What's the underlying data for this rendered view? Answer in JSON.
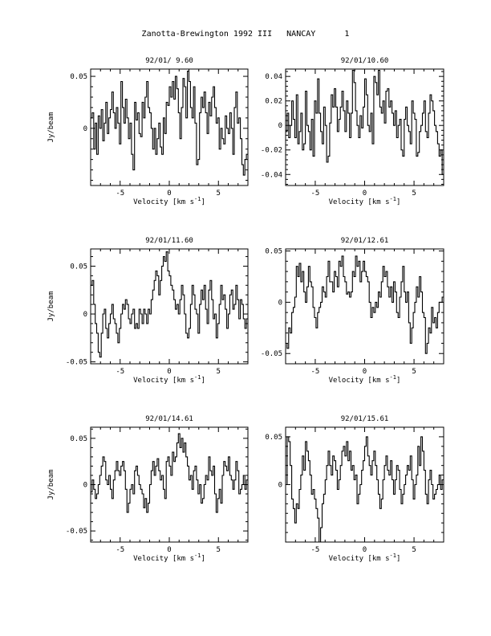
{
  "page": {
    "title": "Zanotta-Brewington 1992 III   NANCAY      1"
  },
  "chart_data": [
    {
      "type": "line",
      "title": "92/01/ 9.60",
      "xlabel": "Velocity [km s",
      "xlabel_sup": "-1",
      "xlabel_close": "]",
      "ylabel": "Jy/beam",
      "xlim": [
        -8,
        8
      ],
      "ylim": [
        -0.055,
        0.057
      ],
      "xticks": [
        -5,
        0,
        5
      ],
      "yticks": [
        0,
        0.05
      ],
      "ytick_labels": [
        "0",
        "0.05"
      ],
      "y": [
        0.01,
        0.015,
        -0.02,
        0.005,
        -0.025,
        0.012,
        0.0,
        0.018,
        -0.012,
        0.005,
        0.025,
        -0.005,
        0.01,
        0.018,
        0.035,
        0.015,
        0.0,
        0.02,
        0.005,
        -0.015,
        0.045,
        0.02,
        0.005,
        0.028,
        0.01,
        -0.01,
        0.005,
        -0.025,
        -0.04,
        0.025,
        0.008,
        0.015,
        -0.005,
        -0.008,
        0.025,
        0.01,
        0.03,
        0.045,
        0.02,
        0.015,
        0.0,
        -0.02,
        0.0,
        -0.025,
        -0.01,
        0.005,
        -0.018,
        -0.025,
        0.01,
        -0.005,
        0.025,
        0.022,
        0.04,
        0.03,
        0.045,
        0.028,
        0.05,
        0.038,
        0.015,
        -0.01,
        0.02,
        0.048,
        0.04,
        0.01,
        0.055,
        0.045,
        0.02,
        0.01,
        0.04,
        0.005,
        -0.035,
        -0.03,
        0.015,
        0.03,
        0.02,
        0.035,
        0.015,
        -0.005,
        0.025,
        0.012,
        0.03,
        0.04,
        0.02,
        0.005,
        0.01,
        -0.02,
        0.0,
        -0.01,
        -0.015,
        0.012,
        0.0,
        -0.005,
        0.015,
        0.0,
        -0.025,
        0.02,
        0.035,
        0.005,
        0.01,
        -0.01,
        -0.035,
        -0.045,
        -0.03,
        -0.025
      ]
    },
    {
      "type": "line",
      "title": "92/01/10.60",
      "xlabel": "Velocity [km s",
      "xlabel_sup": "-1",
      "xlabel_close": "]",
      "ylabel": "",
      "xlim": [
        -8,
        8
      ],
      "ylim": [
        -0.049,
        0.046
      ],
      "xticks": [
        -5,
        0,
        5
      ],
      "yticks": [
        -0.04,
        -0.02,
        0,
        0.02,
        0.04
      ],
      "ytick_labels": [
        "-0.04",
        "-0.02",
        "0",
        "0.02",
        "0.04"
      ],
      "y": [
        -0.005,
        0.01,
        -0.01,
        0.0,
        0.02,
        0.005,
        -0.01,
        0.025,
        -0.015,
        -0.005,
        0.01,
        -0.02,
        -0.015,
        0.028,
        0.0,
        -0.005,
        -0.02,
        0.005,
        -0.025,
        0.02,
        0.01,
        0.038,
        0.01,
        -0.005,
        -0.015,
        0.015,
        0.0,
        -0.03,
        -0.025,
        0.002,
        0.025,
        0.015,
        0.03,
        0.015,
        -0.005,
        0.005,
        0.015,
        0.028,
        0.012,
        -0.005,
        0.02,
        0.01,
        -0.01,
        0.01,
        0.045,
        0.035,
        0.012,
        0.0,
        -0.01,
        0.008,
        -0.002,
        0.015,
        0.038,
        0.025,
        0.0,
        -0.005,
        0.01,
        -0.015,
        0.04,
        0.035,
        0.025,
        0.045,
        0.015,
        0.01,
        0.02,
        0.002,
        0.028,
        0.03,
        0.015,
        0.02,
        0.01,
        0.0,
        0.012,
        -0.01,
        0.0,
        0.005,
        -0.02,
        -0.025,
        0.005,
        0.015,
        0.0,
        -0.005,
        -0.015,
        0.02,
        0.01,
        0.005,
        -0.025,
        -0.022,
        -0.005,
        0.0,
        0.01,
        0.02,
        -0.005,
        -0.01,
        0.01,
        0.025,
        0.02,
        0.012,
        0.0,
        -0.005,
        -0.015,
        -0.025,
        -0.02,
        -0.04
      ]
    },
    {
      "type": "line",
      "title": "92/01/11.60",
      "xlabel": "Velocity [km s",
      "xlabel_sup": "-1",
      "xlabel_close": "]",
      "ylabel": "Jy/beam",
      "xlim": [
        -8,
        8
      ],
      "ylim": [
        -0.052,
        0.068
      ],
      "xticks": [
        -5,
        0,
        5
      ],
      "yticks": [
        -0.05,
        0,
        0.05
      ],
      "ytick_labels": [
        "-0.05",
        "0",
        "0.05"
      ],
      "y": [
        0.03,
        0.035,
        0.01,
        -0.01,
        -0.02,
        -0.04,
        -0.045,
        -0.02,
        0.0,
        0.005,
        -0.015,
        -0.025,
        -0.01,
        0.0,
        0.01,
        -0.005,
        -0.01,
        -0.02,
        -0.03,
        -0.015,
        0.0,
        0.01,
        0.005,
        0.015,
        0.01,
        -0.005,
        -0.01,
        0.0,
        0.005,
        -0.015,
        -0.01,
        -0.015,
        0.005,
        0.0,
        -0.01,
        0.005,
        0.0,
        -0.01,
        0.005,
        0.0,
        0.015,
        0.025,
        0.035,
        0.045,
        0.04,
        0.02,
        0.035,
        0.05,
        0.06,
        0.055,
        0.065,
        0.045,
        0.04,
        0.03,
        0.025,
        0.015,
        0.005,
        0.01,
        0.0,
        0.015,
        0.03,
        0.02,
        0.0,
        -0.02,
        -0.025,
        -0.015,
        0.01,
        0.03,
        0.02,
        0.005,
        0.0,
        -0.02,
        0.01,
        0.025,
        0.015,
        0.03,
        0.005,
        -0.01,
        0.025,
        0.035,
        0.015,
        -0.005,
        0.0,
        -0.025,
        -0.01,
        0.01,
        0.03,
        0.015,
        0.02,
        0.005,
        -0.015,
        0.0,
        0.02,
        0.025,
        0.005,
        0.01,
        0.03,
        0.015,
        -0.005,
        0.015,
        0.01,
        -0.005,
        -0.015,
        -0.005
      ]
    },
    {
      "type": "line",
      "title": "92/01/12.61",
      "xlabel": "Velocity [km s",
      "xlabel_sup": "-1",
      "xlabel_close": "]",
      "ylabel": "",
      "xlim": [
        -8,
        8
      ],
      "ylim": [
        -0.06,
        0.052
      ],
      "xticks": [
        -5,
        0,
        5
      ],
      "yticks": [
        -0.05,
        0,
        0.05
      ],
      "ytick_labels": [
        "-0.05",
        "0",
        "0.05"
      ],
      "y": [
        -0.04,
        -0.045,
        -0.025,
        -0.03,
        -0.01,
        -0.005,
        0.005,
        0.035,
        0.025,
        0.038,
        0.02,
        0.03,
        0.01,
        0.0,
        0.015,
        0.035,
        0.02,
        0.015,
        -0.005,
        -0.015,
        -0.025,
        -0.01,
        -0.005,
        0.0,
        0.015,
        0.01,
        0.005,
        0.025,
        0.04,
        0.02,
        0.02,
        0.01,
        0.03,
        0.025,
        0.015,
        0.04,
        0.035,
        0.045,
        0.025,
        0.02,
        0.008,
        0.01,
        0.005,
        0.01,
        0.03,
        0.025,
        0.045,
        0.035,
        0.04,
        0.02,
        0.03,
        0.04,
        0.03,
        0.025,
        0.02,
        0.0,
        -0.015,
        -0.005,
        -0.01,
        0.0,
        -0.005,
        0.01,
        0.005,
        0.02,
        0.035,
        0.025,
        0.03,
        0.015,
        0.005,
        0.015,
        0.0,
        0.02,
        0.01,
        -0.01,
        -0.015,
        0.005,
        0.02,
        0.035,
        0.01,
        0.0,
        0.01,
        -0.02,
        -0.04,
        -0.025,
        -0.01,
        0.0,
        0.015,
        0.005,
        0.025,
        0.01,
        -0.01,
        -0.015,
        -0.05,
        -0.04,
        -0.025,
        -0.03,
        -0.005,
        -0.02,
        -0.015,
        -0.025,
        -0.01,
        0.0,
        0.0,
        0.005
      ]
    },
    {
      "type": "line",
      "title": "92/01/14.61",
      "xlabel": "Velocity [km s",
      "xlabel_sup": "-1",
      "xlabel_close": "]",
      "ylabel": "Jy/beam",
      "xlim": [
        -8,
        8
      ],
      "ylim": [
        -0.062,
        0.062
      ],
      "xticks": [
        -5,
        0,
        5
      ],
      "yticks": [
        -0.05,
        0,
        0.05
      ],
      "ytick_labels": [
        "-0.05",
        "0",
        "0.05"
      ],
      "y": [
        -0.008,
        0.005,
        -0.005,
        -0.015,
        -0.01,
        0.0,
        0.01,
        0.02,
        0.03,
        0.025,
        0.005,
        0.0,
        0.01,
        -0.005,
        -0.015,
        0.005,
        0.015,
        0.025,
        0.015,
        0.01,
        0.02,
        0.025,
        0.015,
        -0.005,
        -0.03,
        -0.02,
        -0.005,
        0.0,
        -0.01,
        0.015,
        0.02,
        0.01,
        0.0,
        -0.005,
        -0.01,
        -0.025,
        -0.015,
        -0.03,
        -0.02,
        0.0,
        0.015,
        0.025,
        0.01,
        0.02,
        0.028,
        0.015,
        0.005,
        0.01,
        -0.005,
        -0.015,
        0.025,
        0.03,
        0.02,
        0.01,
        0.035,
        0.025,
        0.03,
        0.045,
        0.055,
        0.04,
        0.05,
        0.035,
        0.045,
        0.03,
        0.02,
        0.005,
        0.01,
        -0.005,
        0.015,
        0.02,
        0.005,
        -0.01,
        0.0,
        -0.02,
        -0.015,
        0.0,
        0.01,
        0.005,
        0.03,
        0.015,
        0.01,
        0.02,
        -0.01,
        -0.03,
        -0.015,
        -0.005,
        -0.02,
        0.01,
        0.025,
        0.02,
        0.015,
        0.03,
        0.01,
        0.005,
        -0.005,
        0.005,
        0.025,
        0.015,
        -0.01,
        -0.005,
        0.0,
        0.01,
        -0.005,
        0.005
      ]
    },
    {
      "type": "line",
      "title": "92/01/15.61",
      "xlabel": "Velocity [km s",
      "xlabel_sup": "-1",
      "xlabel_close": "]",
      "ylabel": "",
      "xlim": [
        -8,
        8
      ],
      "ylim": [
        -0.06,
        0.06
      ],
      "xticks": [
        -5,
        0,
        5
      ],
      "yticks": [
        0,
        0.05
      ],
      "ytick_labels": [
        "0",
        "0.05"
      ],
      "y": [
        0.0,
        0.05,
        0.045,
        0.02,
        -0.015,
        -0.025,
        -0.04,
        -0.02,
        -0.025,
        -0.005,
        0.01,
        0.03,
        0.015,
        0.045,
        0.035,
        0.025,
        0.01,
        -0.01,
        -0.005,
        -0.015,
        -0.025,
        -0.035,
        -0.06,
        -0.045,
        -0.02,
        -0.01,
        0.005,
        0.02,
        0.035,
        0.02,
        0.01,
        0.03,
        0.025,
        0.015,
        -0.005,
        0.005,
        0.02,
        0.035,
        0.04,
        0.03,
        0.045,
        0.025,
        0.035,
        0.015,
        0.02,
        0.005,
        0.01,
        -0.02,
        -0.01,
        0.0,
        0.015,
        0.025,
        0.04,
        0.05,
        0.03,
        0.02,
        0.01,
        0.025,
        0.035,
        0.02,
        0.005,
        -0.01,
        -0.025,
        -0.015,
        0.005,
        0.02,
        0.03,
        0.015,
        0.01,
        0.025,
        0.005,
        -0.01,
        0.005,
        0.02,
        0.015,
        -0.005,
        -0.02,
        -0.01,
        0.0,
        0.01,
        0.02,
        0.015,
        0.03,
        0.005,
        -0.015,
        0.0,
        0.01,
        0.04,
        0.02,
        0.05,
        0.035,
        0.015,
        -0.01,
        -0.02,
        0.005,
        0.015,
        0.0,
        -0.015,
        -0.01,
        -0.005,
        0.0,
        0.01,
        -0.005,
        0.005
      ]
    }
  ]
}
